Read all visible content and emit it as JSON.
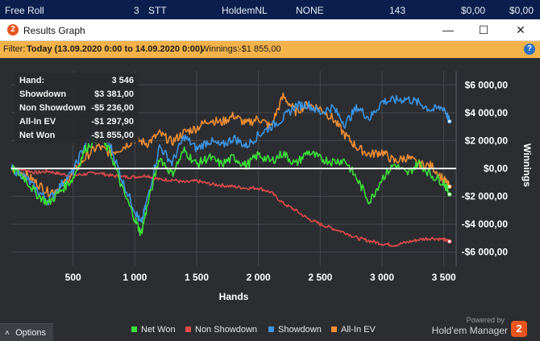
{
  "background_row": {
    "cells": [
      "Free Roll",
      "3",
      "STT",
      "HoldemNL",
      "NONE",
      "143",
      "$0,00",
      "$0,00"
    ]
  },
  "window": {
    "title": "Results Graph",
    "logo_glyph": "2",
    "minimize_glyph": "—",
    "maximize_glyph": "☐",
    "close_glyph": "✕"
  },
  "filter": {
    "prefix": "Filter: ",
    "value": "Today (13.09.2020 0:00 to 14.09.2020 0:00)",
    "winnings_label": "Winnings: ",
    "winnings_value": "-$1 855,00",
    "help_glyph": "?"
  },
  "stats": [
    {
      "label": "Hand:",
      "value": "3 546"
    },
    {
      "label": "Showdown",
      "value": "$3 381,00"
    },
    {
      "label": "Non Showdown",
      "value": "-$5 236,00"
    },
    {
      "label": "All-In EV",
      "value": "-$1 297,90"
    },
    {
      "label": "Net Won",
      "value": "-$1 855,00"
    }
  ],
  "options": {
    "label": "Options",
    "icon": "chevron-up-icon",
    "glyph": "˄"
  },
  "branding": {
    "powered_by": "Powered by",
    "name": "Hold'em Manager",
    "logo_glyph": "2"
  },
  "colors": {
    "net_won": "#3ee03a",
    "non_showdown": "#e04b4b",
    "showdown": "#3d94e0",
    "all_in_ev": "#ef8e34",
    "zero_line": "#ffffff",
    "grid": "#45484d"
  },
  "chart_data": {
    "type": "line",
    "xlabel": "Hands",
    "ylabel": "Winnings",
    "xlim": [
      0,
      3600
    ],
    "ylim": [
      -7000,
      7000
    ],
    "x_ticks": [
      {
        "value": 500,
        "label": "500"
      },
      {
        "value": 1000,
        "label": "1 000"
      },
      {
        "value": 1500,
        "label": "1 500"
      },
      {
        "value": 2000,
        "label": "2 000"
      },
      {
        "value": 2500,
        "label": "2 500"
      },
      {
        "value": 3000,
        "label": "3 000"
      },
      {
        "value": 3500,
        "label": "3 500"
      }
    ],
    "y_ticks": [
      {
        "value": 6000,
        "label": "$6 000,00"
      },
      {
        "value": 4000,
        "label": "$4 000,00"
      },
      {
        "value": 2000,
        "label": "$2 000,00"
      },
      {
        "value": 0,
        "label": "$0,00"
      },
      {
        "value": -2000,
        "label": "-$2 000,00"
      },
      {
        "value": -4000,
        "label": "-$4 000,00"
      },
      {
        "value": -6000,
        "label": "-$6 000,00"
      }
    ],
    "legend_position": "bottom",
    "grid": true,
    "series": [
      {
        "name": "Net Won",
        "color": "#3ee03a",
        "x": [
          0,
          100,
          200,
          300,
          400,
          500,
          600,
          700,
          800,
          900,
          1000,
          1050,
          1100,
          1200,
          1300,
          1400,
          1500,
          1600,
          1700,
          1800,
          1900,
          2000,
          2100,
          2200,
          2300,
          2400,
          2500,
          2600,
          2700,
          2800,
          2900,
          3000,
          3100,
          3200,
          3300,
          3400,
          3500,
          3546
        ],
        "y": [
          0,
          -600,
          -1800,
          -2500,
          -1600,
          -700,
          1400,
          2300,
          1200,
          -1500,
          -3600,
          -4700,
          -2700,
          800,
          -400,
          1300,
          300,
          800,
          300,
          800,
          200,
          1000,
          500,
          1100,
          300,
          1200,
          700,
          500,
          600,
          -800,
          -2400,
          -700,
          300,
          -400,
          400,
          -500,
          -1000,
          -1855
        ]
      },
      {
        "name": "Non Showdown",
        "color": "#e04b4b",
        "x": [
          0,
          100,
          200,
          300,
          400,
          500,
          600,
          700,
          800,
          900,
          1000,
          1100,
          1200,
          1300,
          1400,
          1500,
          1600,
          1700,
          1800,
          1900,
          2000,
          2100,
          2200,
          2300,
          2400,
          2500,
          2600,
          2700,
          2800,
          2900,
          3000,
          3100,
          3200,
          3300,
          3400,
          3500,
          3546
        ],
        "y": [
          0,
          -100,
          -300,
          -200,
          -400,
          -500,
          -400,
          -300,
          -500,
          -600,
          -600,
          -500,
          -800,
          -800,
          -1000,
          -900,
          -1100,
          -1200,
          -1300,
          -1400,
          -1400,
          -1700,
          -2500,
          -3000,
          -3600,
          -4000,
          -4300,
          -4600,
          -5000,
          -5200,
          -5400,
          -5500,
          -5300,
          -5100,
          -5000,
          -5100,
          -5236
        ]
      },
      {
        "name": "Showdown",
        "color": "#3d94e0",
        "x": [
          0,
          100,
          200,
          300,
          400,
          500,
          600,
          700,
          800,
          900,
          1000,
          1050,
          1100,
          1200,
          1300,
          1400,
          1500,
          1600,
          1700,
          1800,
          1900,
          2000,
          2100,
          2200,
          2300,
          2400,
          2500,
          2600,
          2700,
          2800,
          2900,
          3000,
          3100,
          3200,
          3300,
          3400,
          3500,
          3546
        ],
        "y": [
          0,
          -500,
          -1500,
          -2300,
          -1200,
          -200,
          1800,
          2600,
          1700,
          -900,
          -3000,
          -4000,
          -2200,
          1600,
          400,
          2300,
          1400,
          2000,
          1600,
          2200,
          1600,
          2400,
          3000,
          3600,
          4500,
          4600,
          4000,
          4400,
          3200,
          4400,
          3600,
          4800,
          4900,
          5000,
          4700,
          4200,
          4400,
          3381
        ]
      },
      {
        "name": "All-In EV",
        "color": "#ef8e34",
        "x": [
          0,
          100,
          200,
          300,
          400,
          500,
          600,
          700,
          800,
          900,
          1000,
          1100,
          1200,
          1300,
          1400,
          1500,
          1600,
          1700,
          1800,
          1900,
          2000,
          2100,
          2200,
          2300,
          2400,
          2500,
          2600,
          2700,
          2800,
          2900,
          3000,
          3100,
          3200,
          3300,
          3400,
          3500,
          3546
        ],
        "y": [
          0,
          -300,
          -1000,
          -1700,
          -1400,
          -300,
          800,
          1600,
          1100,
          1500,
          2100,
          1800,
          2500,
          1900,
          2600,
          2900,
          3500,
          3300,
          3800,
          3200,
          3600,
          3000,
          5200,
          4100,
          4600,
          4300,
          3600,
          2400,
          1500,
          1000,
          1200,
          500,
          800,
          300,
          200,
          -800,
          -1298
        ]
      }
    ]
  }
}
